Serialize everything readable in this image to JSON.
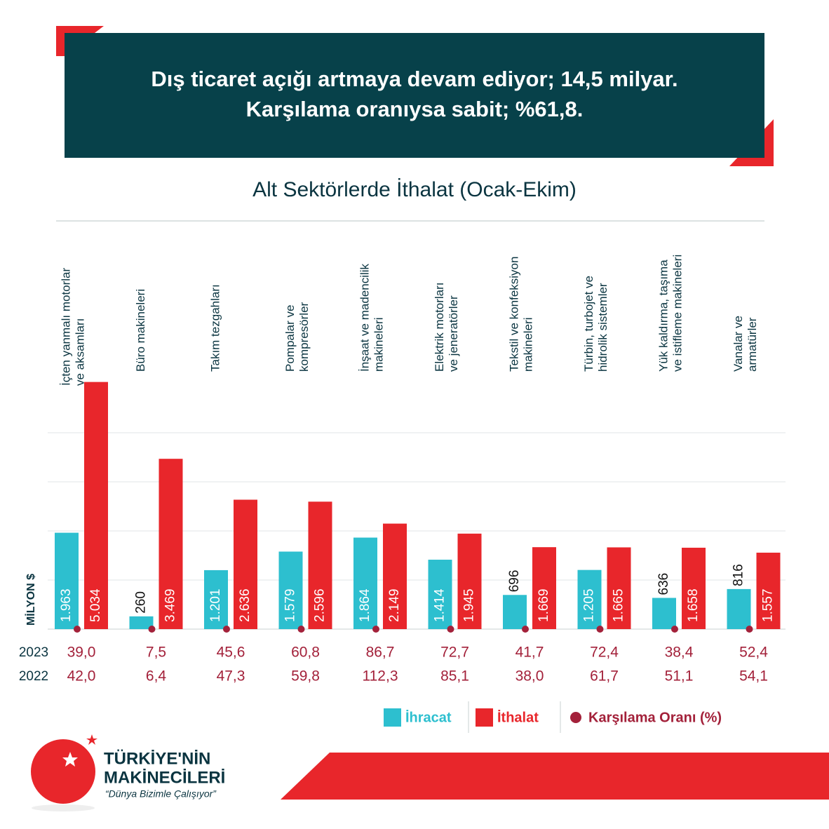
{
  "header": {
    "title_lines": [
      "Dış ticaret açığı artmaya devam ediyor; 14,5 milyar.",
      "Karşılama oranıysa sabit; %61,8."
    ]
  },
  "chart_data": {
    "type": "bar",
    "title": "Alt Sektörlerde İthalat (Ocak-Ekim)",
    "y_label": "MİLYON $",
    "categories": [
      [
        "İçten yanmalı motorlar",
        "ve aksamları"
      ],
      [
        "Büro makineleri"
      ],
      [
        "Takım tezgahları"
      ],
      [
        "Pompalar ve",
        "kompresörler"
      ],
      [
        "İnşaat ve madencilik",
        "makineleri"
      ],
      [
        "Elektrik motorları",
        "ve jeneratörler"
      ],
      [
        "Tekstil ve konfeksiyon",
        "makineleri"
      ],
      [
        "Türbin, turbojet ve",
        "hidrolik sistemler"
      ],
      [
        "Yük kaldırma, taşıma",
        "ve istifleme makineleri"
      ],
      [
        "Vanalar ve",
        "armatürler"
      ]
    ],
    "series": [
      {
        "name": "İhracat",
        "color": "#2dbfcf",
        "values": [
          1963,
          260,
          1201,
          1579,
          1864,
          1414,
          696,
          1205,
          636,
          816
        ],
        "value_labels": [
          "1.963",
          "260",
          "1.201",
          "1.579",
          "1.864",
          "1.414",
          "696",
          "1.205",
          "636",
          "816"
        ]
      },
      {
        "name": "İthalat",
        "color": "#e8262b",
        "values": [
          5034,
          3469,
          2636,
          2596,
          2149,
          1945,
          1669,
          1665,
          1658,
          1557
        ],
        "value_labels": [
          "5.034",
          "3.469",
          "2.636",
          "2.596",
          "2.149",
          "1.945",
          "1.669",
          "1.665",
          "1.658",
          "1.557"
        ]
      }
    ],
    "ratio": {
      "name": "Karşılama Oranı (%)",
      "color": "#a3213a",
      "years": [
        "2023",
        "2022"
      ],
      "values": [
        [
          39.0,
          7.5,
          45.6,
          60.8,
          86.7,
          72.7,
          41.7,
          72.4,
          38.4,
          52.4
        ],
        [
          42.0,
          6.4,
          47.3,
          59.8,
          112.3,
          85.1,
          38.0,
          61.7,
          51.1,
          54.1
        ]
      ],
      "value_labels": [
        [
          "39,0",
          "7,5",
          "45,6",
          "60,8",
          "86,7",
          "72,7",
          "41,7",
          "72,4",
          "38,4",
          "52,4"
        ],
        [
          "42,0",
          "6,4",
          "47,3",
          "59,8",
          "112,3",
          "85,1",
          "38,0",
          "61,7",
          "51,1",
          "54,1"
        ]
      ]
    },
    "ylim": [
      0,
      5000
    ],
    "yticks": [
      0,
      1000,
      2000,
      3000,
      4000
    ],
    "grid": true
  },
  "logo": {
    "name_lines": [
      "TÜRKİYE'NİN",
      "MAKİNECİLERİ"
    ],
    "tagline": "“Dünya Bizimle Çalışıyor”"
  }
}
